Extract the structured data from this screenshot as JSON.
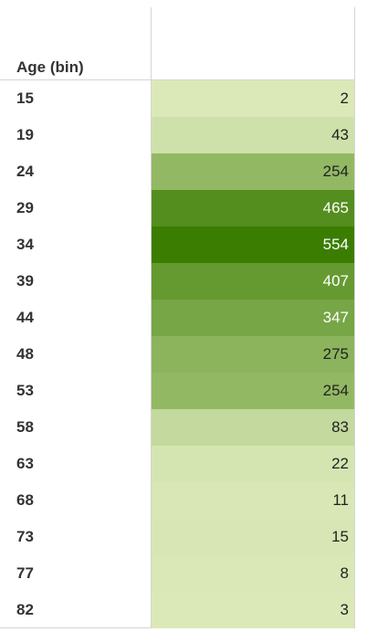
{
  "chart_data": {
    "type": "table",
    "row_header": "Age (bin)",
    "rows": [
      {
        "bin": "15",
        "value": 2
      },
      {
        "bin": "19",
        "value": 43
      },
      {
        "bin": "24",
        "value": 254
      },
      {
        "bin": "29",
        "value": 465
      },
      {
        "bin": "34",
        "value": 554
      },
      {
        "bin": "39",
        "value": 407
      },
      {
        "bin": "44",
        "value": 347
      },
      {
        "bin": "48",
        "value": 275
      },
      {
        "bin": "53",
        "value": 254
      },
      {
        "bin": "58",
        "value": 83
      },
      {
        "bin": "63",
        "value": 22
      },
      {
        "bin": "68",
        "value": 11
      },
      {
        "bin": "73",
        "value": 15
      },
      {
        "bin": "77",
        "value": 8
      },
      {
        "bin": "82",
        "value": 3
      }
    ],
    "color_scale": {
      "low": "#dbe9b8",
      "high": "#3a7d00"
    }
  }
}
